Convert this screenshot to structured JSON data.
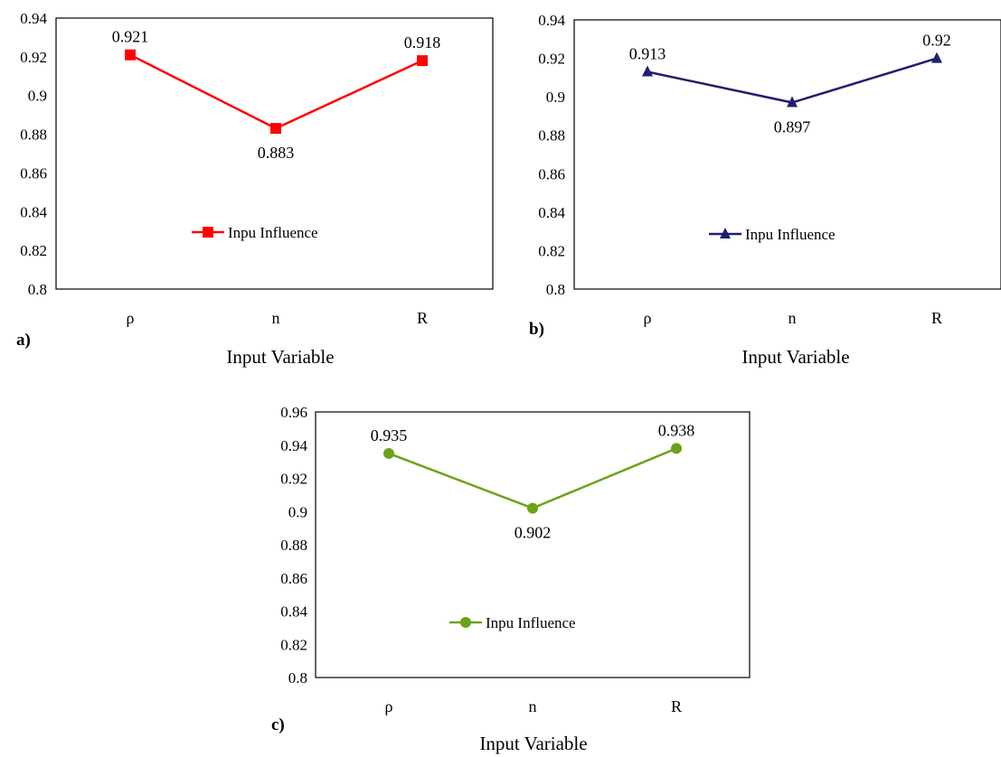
{
  "chart_data": [
    {
      "panel": "a)",
      "type": "line",
      "categories": [
        "ρ",
        "n",
        "R"
      ],
      "series": [
        {
          "name": "Inpu Influence",
          "values": [
            0.921,
            0.883,
            0.918
          ]
        }
      ],
      "data_labels": [
        "0.921",
        "0.883",
        "0.918"
      ],
      "xlabel": "Input Variable",
      "ylabel": "",
      "ylim": [
        0.8,
        0.94
      ],
      "yticks": [
        "0.8",
        "0.82",
        "0.84",
        "0.86",
        "0.88",
        "0.9",
        "0.92",
        "0.94"
      ],
      "color": "#ff0000",
      "marker": "square",
      "legend": "center",
      "grid": false
    },
    {
      "panel": "b)",
      "type": "line",
      "categories": [
        "ρ",
        "n",
        "R"
      ],
      "series": [
        {
          "name": "Inpu Influence",
          "values": [
            0.913,
            0.897,
            0.92
          ]
        }
      ],
      "data_labels": [
        "0.913",
        "0.897",
        "0.92"
      ],
      "xlabel": "Input Variable",
      "ylabel": "",
      "ylim": [
        0.8,
        0.94
      ],
      "yticks": [
        "0.8",
        "0.82",
        "0.84",
        "0.86",
        "0.88",
        "0.9",
        "0.92",
        "0.94"
      ],
      "color": "#1f1f6e",
      "marker": "triangle",
      "legend": "center",
      "grid": false
    },
    {
      "panel": "c)",
      "type": "line",
      "categories": [
        "ρ",
        "n",
        "R"
      ],
      "series": [
        {
          "name": "Inpu Influence",
          "values": [
            0.935,
            0.902,
            0.938
          ]
        }
      ],
      "data_labels": [
        "0.935",
        "0.902",
        "0.938"
      ],
      "xlabel": "Input Variable",
      "ylabel": "",
      "ylim": [
        0.8,
        0.96
      ],
      "yticks": [
        "0.8",
        "0.82",
        "0.84",
        "0.86",
        "0.88",
        "0.9",
        "0.92",
        "0.94",
        "0.96"
      ],
      "color": "#6ca218",
      "marker": "circle",
      "legend": "center",
      "grid": false
    }
  ]
}
